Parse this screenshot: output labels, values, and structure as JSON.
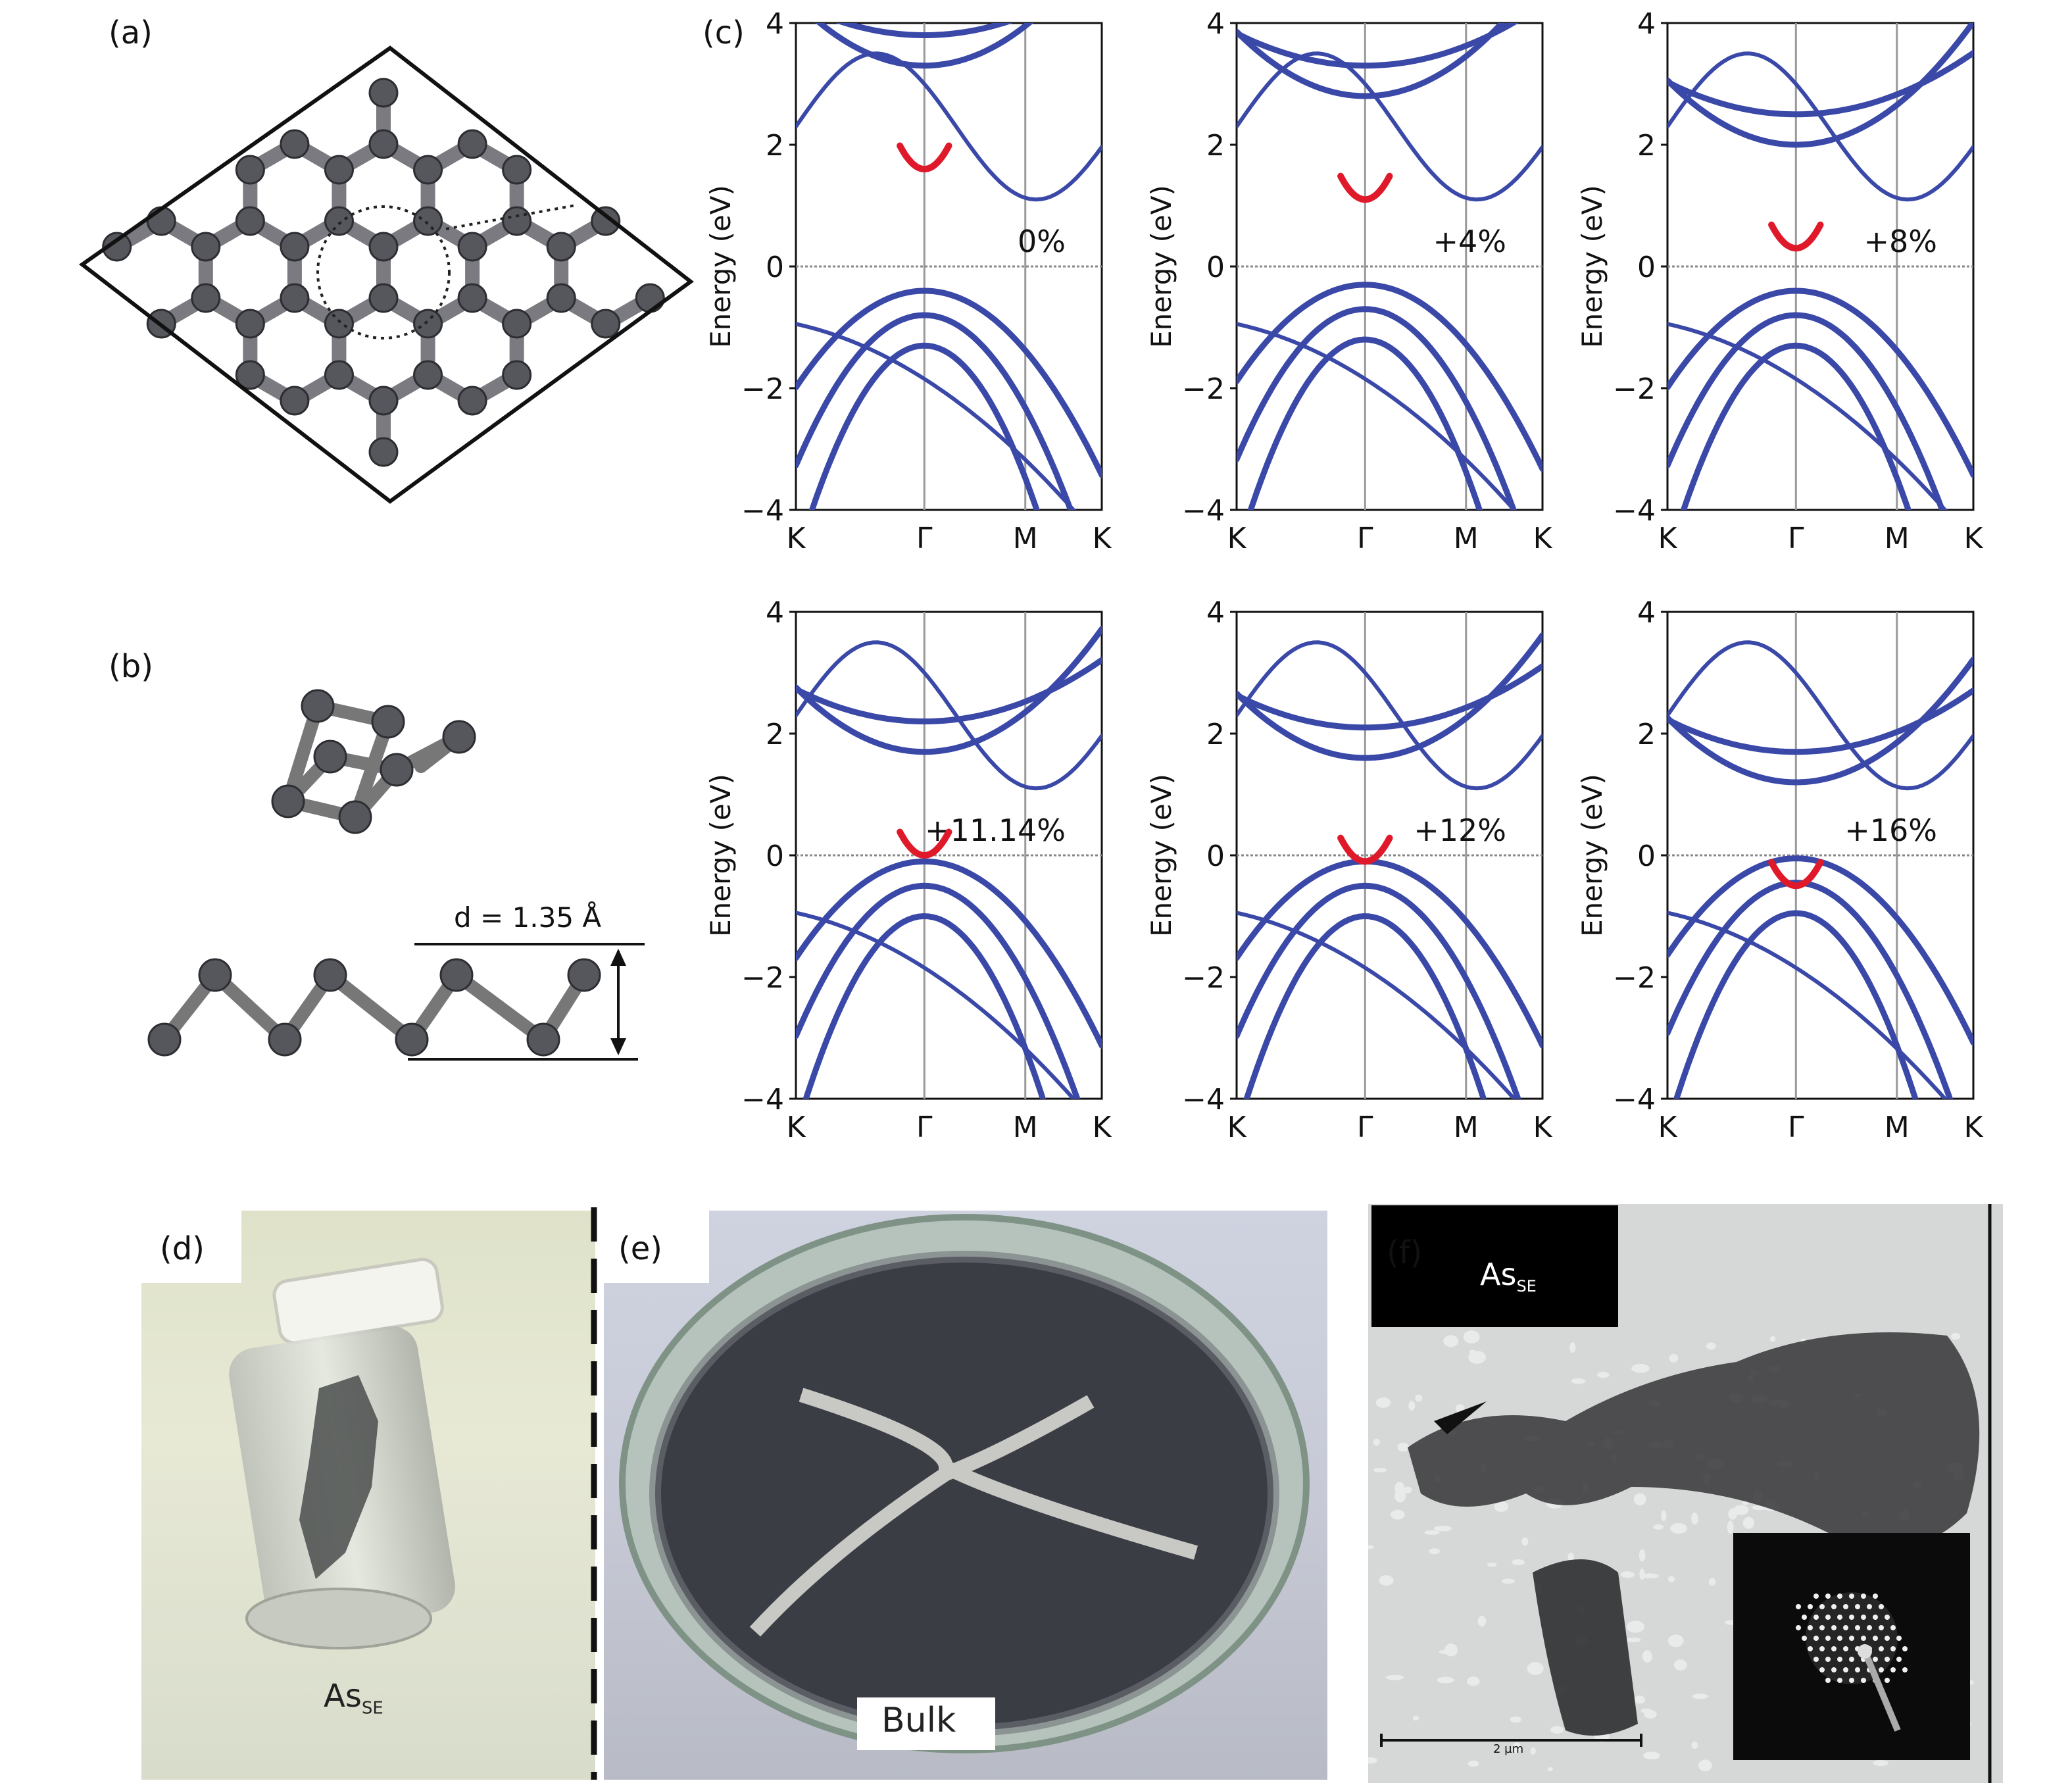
{
  "panels": {
    "a": {
      "label": "(a)"
    },
    "b": {
      "label": "(b)",
      "interlayer_label": "d = 1.35 Å"
    },
    "c": {
      "label": "(c)"
    },
    "d": {
      "label": "(d)",
      "sample_label": "As",
      "sample_sub": "SE"
    },
    "e": {
      "label": "(e)",
      "sample_label": "Bulk"
    },
    "f": {
      "label": "(f)",
      "sample_label": "As",
      "sample_sub": "SE",
      "scale_label": "2 µm"
    }
  },
  "colors": {
    "band": "#3a48a8",
    "highlight": "#e0192a",
    "frame": "#111111"
  },
  "chart_data": [
    {
      "type": "line",
      "title": "",
      "annotation": "0%",
      "ylabel": "Energy (eV)",
      "ylim": [
        -4,
        4
      ],
      "yticks": [
        "4",
        "2",
        "0",
        "−2",
        "−4"
      ],
      "xticks": [
        "K",
        "Γ",
        "M",
        "K"
      ],
      "series": [
        {
          "values": []
        }
      ],
      "gamma_min_conduction": 1.6,
      "gamma_max_valence": -0.3
    },
    {
      "type": "line",
      "title": "",
      "annotation": "+4%",
      "ylabel": "Energy (eV)",
      "ylim": [
        -4,
        4
      ],
      "yticks": [
        "4",
        "2",
        "0",
        "−2",
        "−4"
      ],
      "xticks": [
        "K",
        "Γ",
        "M",
        "K"
      ],
      "series": [
        {
          "values": []
        }
      ],
      "gamma_min_conduction": 1.1,
      "gamma_max_valence": -0.2
    },
    {
      "type": "line",
      "title": "",
      "annotation": "+8%",
      "ylabel": "Energy (eV)",
      "ylim": [
        -4,
        4
      ],
      "yticks": [
        "4",
        "2",
        "0",
        "−2",
        "−4"
      ],
      "xticks": [
        "K",
        "Γ",
        "M",
        "K"
      ],
      "series": [
        {
          "values": []
        }
      ],
      "gamma_min_conduction": 0.3,
      "gamma_max_valence": -0.3
    },
    {
      "type": "line",
      "title": "",
      "annotation": "+11.14%",
      "ylabel": "Energy (eV)",
      "ylim": [
        -4,
        4
      ],
      "yticks": [
        "4",
        "2",
        "0",
        "−2",
        "−4"
      ],
      "xticks": [
        "K",
        "Γ",
        "M",
        "K"
      ],
      "series": [
        {
          "values": []
        }
      ],
      "gamma_min_conduction": 0.0,
      "gamma_max_valence": 0.0
    },
    {
      "type": "line",
      "title": "",
      "annotation": "+12%",
      "ylabel": "Energy (eV)",
      "ylim": [
        -4,
        4
      ],
      "yticks": [
        "4",
        "2",
        "0",
        "−2",
        "−4"
      ],
      "xticks": [
        "K",
        "Γ",
        "M",
        "K"
      ],
      "series": [
        {
          "values": []
        }
      ],
      "gamma_min_conduction": -0.1,
      "gamma_max_valence": 0.0
    },
    {
      "type": "line",
      "title": "",
      "annotation": "+16%",
      "ylabel": "Energy (eV)",
      "ylim": [
        -4,
        4
      ],
      "yticks": [
        "4",
        "2",
        "0",
        "−2",
        "−4"
      ],
      "xticks": [
        "K",
        "Γ",
        "M",
        "K"
      ],
      "series": [
        {
          "values": []
        }
      ],
      "gamma_min_conduction": -0.5,
      "gamma_max_valence": 0.05
    }
  ]
}
